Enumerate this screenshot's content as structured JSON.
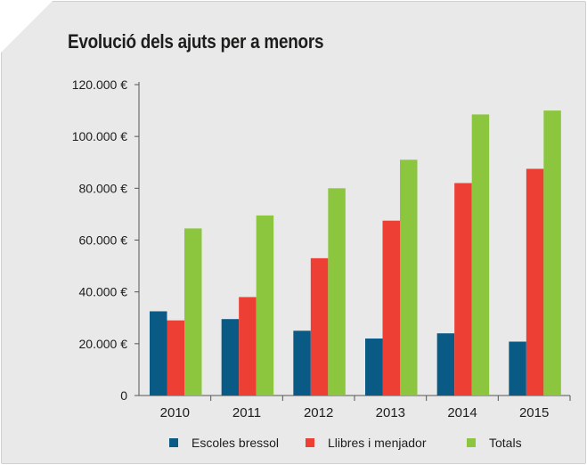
{
  "chart_data": {
    "type": "bar",
    "title": "Evolució dels ajuts per a menors",
    "xlabel": "",
    "ylabel": "",
    "categories": [
      "2010",
      "2011",
      "2012",
      "2013",
      "2014",
      "2015"
    ],
    "series": [
      {
        "name": "Escoles bressol",
        "color": "#0a5a86",
        "values": [
          32500,
          29500,
          25000,
          22000,
          24000,
          20800
        ]
      },
      {
        "name": "Llibres i menjador",
        "color": "#ee3f34",
        "values": [
          29000,
          38000,
          53000,
          67500,
          82000,
          87500
        ]
      },
      {
        "name": "Totals",
        "color": "#8cc63f",
        "values": [
          64500,
          69500,
          80000,
          91000,
          108500,
          110000
        ]
      }
    ],
    "ylim": [
      0,
      120000
    ],
    "yticks": [
      0,
      20000,
      40000,
      60000,
      80000,
      100000,
      120000
    ],
    "ytick_labels": [
      "0",
      "20.000 €",
      "40.000 €",
      "60.000 €",
      "80.000 €",
      "100.000 €",
      "120.000 €"
    ],
    "grid": false,
    "legend_position": "bottom"
  }
}
